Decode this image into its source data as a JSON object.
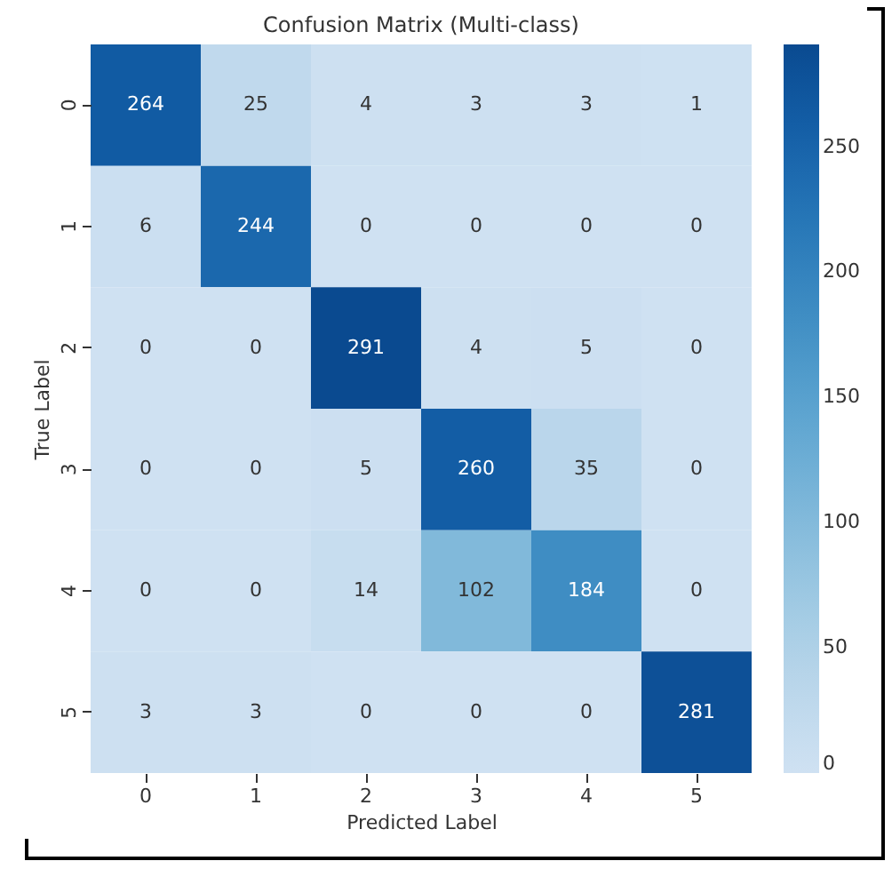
{
  "chart_data": {
    "type": "heatmap",
    "title": "Confusion Matrix (Multi-class)",
    "xlabel": "Predicted Label",
    "ylabel": "True Label",
    "categories": [
      "0",
      "1",
      "2",
      "3",
      "4",
      "5"
    ],
    "y_categories": [
      "0",
      "1",
      "2",
      "3",
      "4",
      "5"
    ],
    "cells": [
      [
        264,
        25,
        4,
        3,
        3,
        1
      ],
      [
        6,
        244,
        0,
        0,
        0,
        0
      ],
      [
        0,
        0,
        291,
        4,
        5,
        0
      ],
      [
        0,
        0,
        5,
        260,
        35,
        0
      ],
      [
        0,
        0,
        14,
        102,
        184,
        0
      ],
      [
        3,
        3,
        0,
        0,
        0,
        281
      ]
    ],
    "clim": [
      0,
      291
    ],
    "cticks": [
      0,
      50,
      100,
      150,
      200,
      250
    ],
    "data_labels": true
  }
}
